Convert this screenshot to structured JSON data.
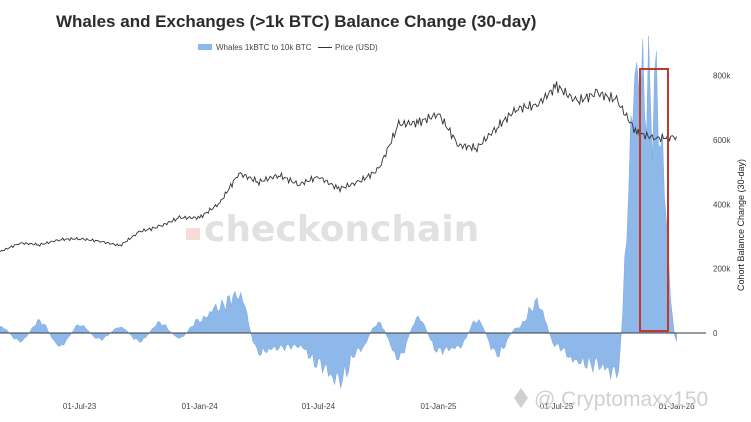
{
  "page": {
    "title": "Whales and Exchanges (>1k BTC) Balance Change (30-day)",
    "watermark": "checkonchain",
    "credit": "@ Cryptomaxx150"
  },
  "colors": {
    "whales": "#8fb8ea",
    "price": "#333333",
    "highlight": "#c0392b",
    "zero_line": "#3a3a3a"
  },
  "chart_data": {
    "type": "area",
    "title": "Whales and Exchanges (>1k BTC) Balance Change (30-day)",
    "legend": {
      "placement": "top-center",
      "entries": [
        "Whales 1kBTC to 10k BTC",
        "Price (USD)"
      ]
    },
    "xlabel": "",
    "x_ticks": [
      "01-Jul-23",
      "01-Jan-24",
      "01-Jul-24",
      "01-Jan-25",
      "01-Jul-25",
      "01-Jan-26"
    ],
    "ylabel_right": "Cohort Balance Change (30-day)",
    "y_ticks_right": [
      "0",
      "200k",
      "400k",
      "600k",
      "800k"
    ],
    "ylim_right": [
      -165000,
      830000
    ],
    "grid": false,
    "price_axis_visible": false,
    "series": [
      {
        "name": "Whales 1kBTC to 10k BTC",
        "type": "area",
        "color": "#8fb8ea",
        "x": [
          "2023-03-01",
          "2023-04-01",
          "2023-05-01",
          "2023-06-01",
          "2023-07-01",
          "2023-08-01",
          "2023-09-01",
          "2023-10-01",
          "2023-11-01",
          "2023-12-01",
          "2024-01-01",
          "2024-02-01",
          "2024-03-01",
          "2024-04-01",
          "2024-05-01",
          "2024-06-01",
          "2024-07-01",
          "2024-08-01",
          "2024-09-01",
          "2024-10-01",
          "2024-11-01",
          "2024-12-01",
          "2025-01-01",
          "2025-02-01",
          "2025-03-01",
          "2025-04-01",
          "2025-05-01",
          "2025-06-01",
          "2025-07-01",
          "2025-08-01",
          "2025-09-01",
          "2025-10-01",
          "2025-11-01",
          "2025-12-01",
          "2026-01-01"
        ],
        "values": [
          20000,
          -25000,
          35000,
          -40000,
          25000,
          -20000,
          18000,
          -25000,
          30000,
          -15000,
          40000,
          85000,
          120000,
          -60000,
          -45000,
          -40000,
          -95000,
          -150000,
          -55000,
          30000,
          -75000,
          45000,
          -55000,
          -45000,
          40000,
          -65000,
          15000,
          90000,
          -40000,
          -90000,
          -100000,
          -125000,
          790000,
          700000,
          -25000
        ]
      },
      {
        "name": "Price (USD)",
        "type": "line",
        "color": "#333333",
        "x": [
          "2023-03-01",
          "2023-04-01",
          "2023-05-01",
          "2023-06-01",
          "2023-07-01",
          "2023-08-01",
          "2023-09-01",
          "2023-10-01",
          "2023-11-01",
          "2023-12-01",
          "2024-01-01",
          "2024-02-01",
          "2024-03-01",
          "2024-04-01",
          "2024-05-01",
          "2024-06-01",
          "2024-07-01",
          "2024-08-01",
          "2024-09-01",
          "2024-10-01",
          "2024-11-01",
          "2024-12-01",
          "2025-01-01",
          "2025-02-01",
          "2025-03-01",
          "2025-04-01",
          "2025-05-01",
          "2025-06-01",
          "2025-07-01",
          "2025-08-01",
          "2025-09-01",
          "2025-10-01",
          "2025-11-01",
          "2025-12-01",
          "2026-01-01"
        ],
        "values": [
          23000,
          28000,
          27000,
          30000,
          30500,
          29000,
          26500,
          34500,
          37500,
          42500,
          42500,
          51000,
          68000,
          63000,
          67000,
          61500,
          66000,
          59000,
          63000,
          70000,
          96000,
          97000,
          102000,
          84000,
          82500,
          94500,
          105000,
          107000,
          118000,
          109000,
          114000,
          110000,
          91000,
          88000,
          89000
        ]
      }
    ]
  }
}
